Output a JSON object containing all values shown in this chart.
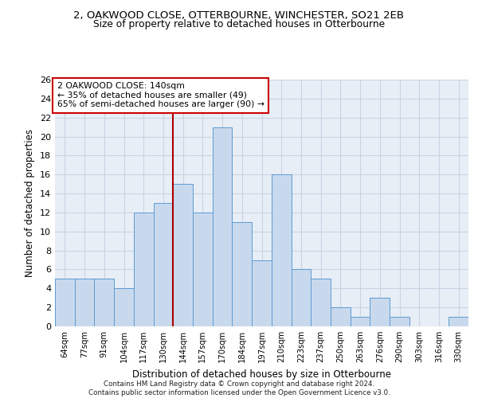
{
  "title1": "2, OAKWOOD CLOSE, OTTERBOURNE, WINCHESTER, SO21 2EB",
  "title2": "Size of property relative to detached houses in Otterbourne",
  "xlabel": "Distribution of detached houses by size in Otterbourne",
  "ylabel": "Number of detached properties",
  "categories": [
    "64sqm",
    "77sqm",
    "91sqm",
    "104sqm",
    "117sqm",
    "130sqm",
    "144sqm",
    "157sqm",
    "170sqm",
    "184sqm",
    "197sqm",
    "210sqm",
    "223sqm",
    "237sqm",
    "250sqm",
    "263sqm",
    "276sqm",
    "290sqm",
    "303sqm",
    "316sqm",
    "330sqm"
  ],
  "values": [
    5,
    5,
    5,
    4,
    12,
    13,
    15,
    12,
    21,
    11,
    7,
    16,
    6,
    5,
    2,
    1,
    3,
    1,
    0,
    0,
    1
  ],
  "bar_color": "#c9d9ed",
  "bar_edge_color": "#5b9bd5",
  "vline_pos": 6.0,
  "vline_color": "#aa0000",
  "annotation_text": "2 OAKWOOD CLOSE: 140sqm\n← 35% of detached houses are smaller (49)\n65% of semi-detached houses are larger (90) →",
  "annotation_box_color": "white",
  "annotation_box_edge_color": "#cc0000",
  "ylim": [
    0,
    26
  ],
  "yticks": [
    0,
    2,
    4,
    6,
    8,
    10,
    12,
    14,
    16,
    18,
    20,
    22,
    24,
    26
  ],
  "grid_color": "#c8d4e4",
  "bg_color": "#e8eef6",
  "footnote": "Contains HM Land Registry data © Crown copyright and database right 2024.\nContains public sector information licensed under the Open Government Licence v3.0."
}
